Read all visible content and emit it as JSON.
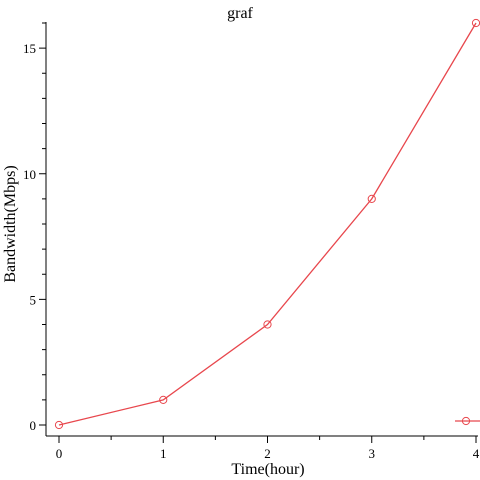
{
  "chart_data": {
    "type": "line",
    "title": "graf",
    "xlabel": "Time(hour)",
    "ylabel": "Bandwidth(Mbps)",
    "xlim": [
      0,
      4
    ],
    "ylim": [
      0,
      16
    ],
    "x_ticks": [
      0,
      1,
      2,
      3,
      4
    ],
    "y_ticks": [
      0,
      5,
      10,
      15
    ],
    "grid": false,
    "legend": {
      "position": "bottom-right",
      "entries": [
        ""
      ]
    },
    "series": [
      {
        "x": [
          0,
          1,
          2,
          3,
          4
        ],
        "values": [
          0,
          1,
          4,
          9,
          16
        ],
        "color": "#e8474d",
        "marker": "circle"
      }
    ]
  }
}
